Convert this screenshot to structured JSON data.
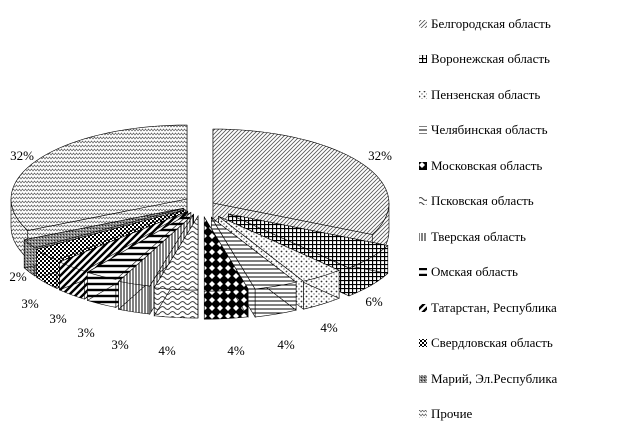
{
  "chart_data": {
    "type": "pie",
    "title": "",
    "legend_position": "right",
    "slices": [
      {
        "label": "Белгородская область",
        "value": 32,
        "value_label": "32%",
        "pattern": "diag-fine-gray"
      },
      {
        "label": "Воронежская область",
        "value": 6,
        "value_label": "6%",
        "pattern": "grid-dark"
      },
      {
        "label": "Пензенская область",
        "value": 4,
        "value_label": "4%",
        "pattern": "dots"
      },
      {
        "label": "Челябинская область",
        "value": 4,
        "value_label": "4%",
        "pattern": "horizontal-lines"
      },
      {
        "label": "Московская область",
        "value": 4,
        "value_label": "4%",
        "pattern": "diamond-dark"
      },
      {
        "label": "Псковская область",
        "value": 4,
        "value_label": "4%",
        "pattern": "waves"
      },
      {
        "label": "Тверская область",
        "value": 3,
        "value_label": "3%",
        "pattern": "vertical-lines"
      },
      {
        "label": "Омская область",
        "value": 3,
        "value_label": "3%",
        "pattern": "horizontal-bold"
      },
      {
        "label": "Татарстан, Республика",
        "value": 3,
        "value_label": "3%",
        "pattern": "diag-bold"
      },
      {
        "label": "Свердловская область",
        "value": 3,
        "value_label": "3%",
        "pattern": "checker-dark"
      },
      {
        "label": "Марий, Эл.Республика",
        "value": 2,
        "value_label": "2%",
        "pattern": "dense-gray"
      },
      {
        "label": "Прочие",
        "value": 32,
        "value_label": "32%",
        "pattern": "zigzag-light"
      }
    ]
  }
}
